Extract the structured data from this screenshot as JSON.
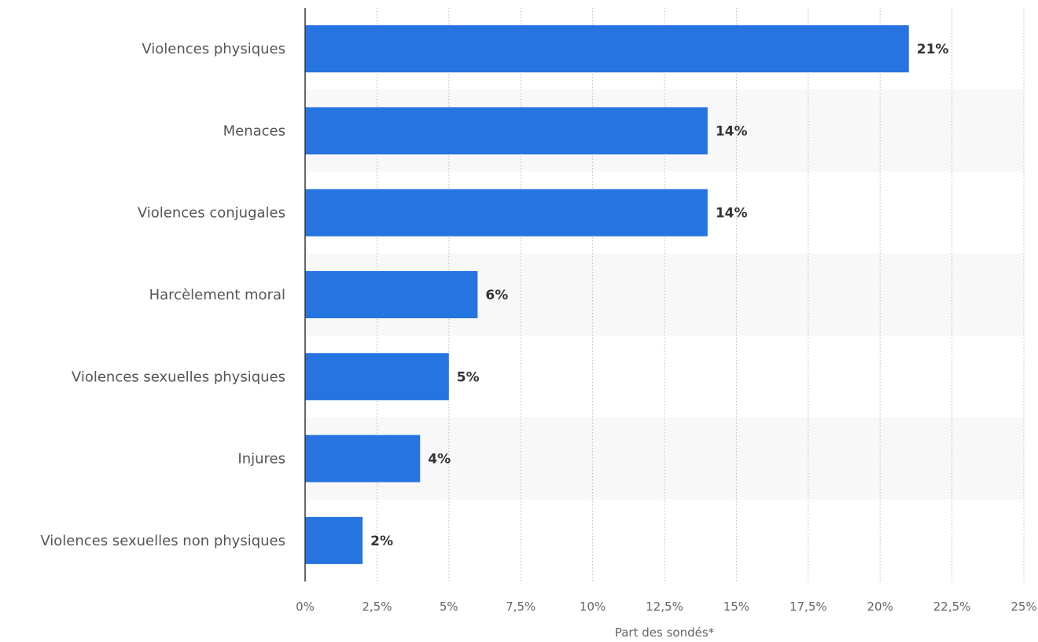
{
  "chart_data": {
    "type": "bar",
    "orientation": "horizontal",
    "categories": [
      "Violences physiques",
      "Menaces",
      "Violences conjugales",
      "Harcèlement moral",
      "Violences sexuelles physiques",
      "Injures",
      "Violences sexuelles non physiques"
    ],
    "values": [
      21,
      14,
      14,
      6,
      5,
      4,
      2
    ],
    "value_labels": [
      "21%",
      "14%",
      "14%",
      "6%",
      "5%",
      "4%",
      "2%"
    ],
    "title": "",
    "xlabel": "Part des sondés*",
    "ylabel": "",
    "xlim": [
      0,
      25
    ],
    "x_ticks": [
      0,
      2.5,
      5,
      7.5,
      10,
      12.5,
      15,
      17.5,
      20,
      22.5,
      25
    ],
    "x_tick_labels": [
      "0%",
      "2,5%",
      "5%",
      "7,5%",
      "10%",
      "12,5%",
      "15%",
      "17,5%",
      "20%",
      "22,5%",
      "25%"
    ],
    "grid": true,
    "legend": "none",
    "colors": {
      "bar": "#2674DF",
      "band": "#F8F8F8",
      "grid": "#BBBBBB",
      "axis": "#333333"
    }
  }
}
